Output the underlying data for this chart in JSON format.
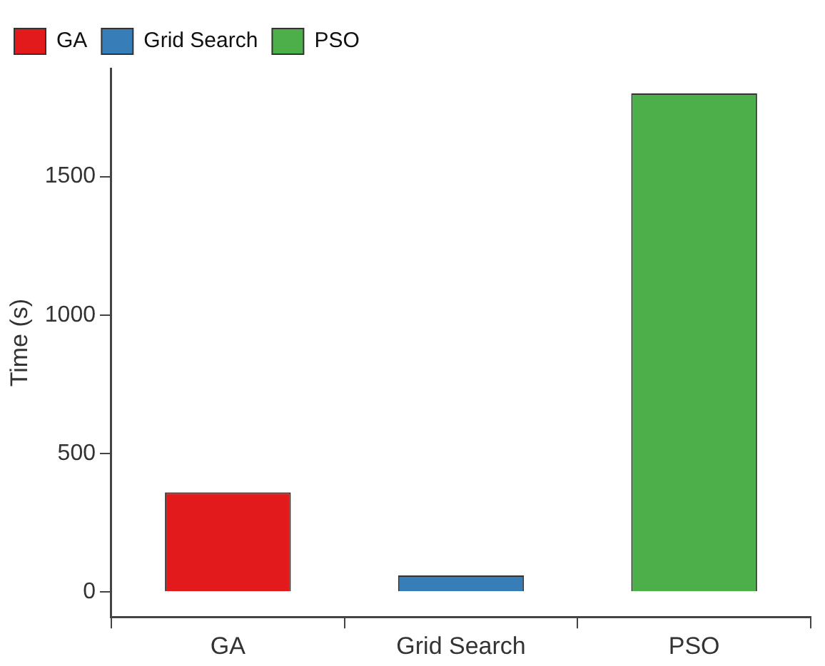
{
  "chart_data": {
    "type": "bar",
    "ylabel": "Time (s)",
    "categories": [
      "GA",
      "Grid Search",
      "PSO"
    ],
    "series": [
      {
        "name": "GA",
        "color": "#e31a1c",
        "values": [
          360,
          null,
          null
        ]
      },
      {
        "name": "Grid Search",
        "color": "#377eb8",
        "values": [
          null,
          60,
          null
        ]
      },
      {
        "name": "PSO",
        "color": "#4daf4a",
        "values": [
          null,
          null,
          1800
        ]
      }
    ],
    "ylim": [
      -90,
      1890
    ],
    "yticks": [
      0,
      500,
      1000,
      1500
    ],
    "grid": false,
    "legend": "top left"
  }
}
